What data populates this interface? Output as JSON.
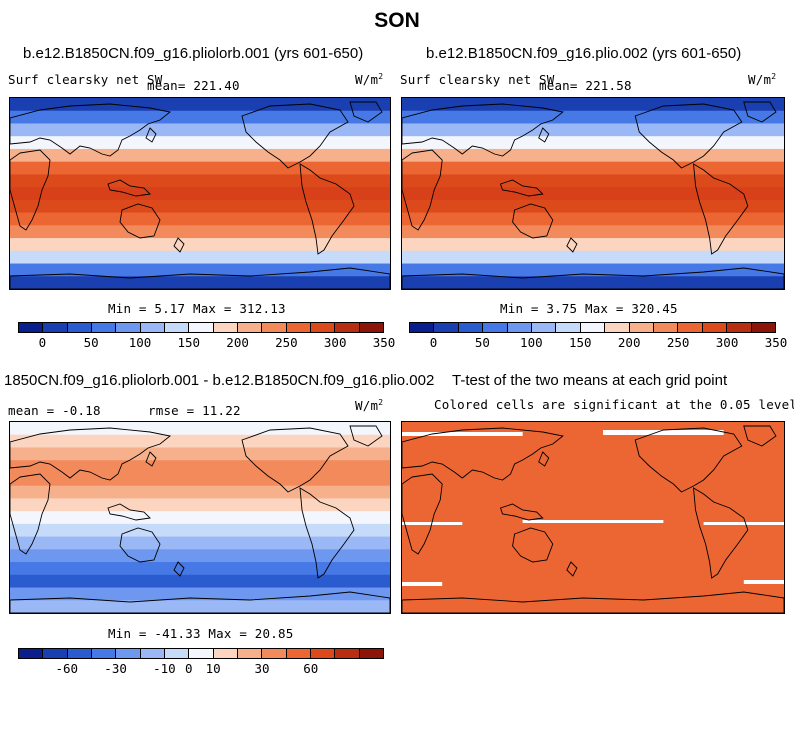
{
  "title": "SON",
  "panels": {
    "p1": {
      "title": "b.e12.B1850CN.f09_g16.pliolorb.001 (yrs 601-650)",
      "variable": "Surf clearsky net SW",
      "mean_label": "mean= 221.40",
      "units": "W/m",
      "units_exp": "2",
      "minmax": "Min =   5.17 Max = 312.13"
    },
    "p2": {
      "title": "b.e12.B1850CN.f09_g16.plio.002 (yrs 601-650)",
      "variable": "Surf clearsky net SW",
      "mean_label": "mean= 221.58",
      "units": "W/m",
      "units_exp": "2",
      "minmax": "Min =   3.75 Max = 320.45"
    },
    "p3": {
      "title": "1850CN.f09_g16.pliolorb.001 - b.e12.B1850CN.f09_g16.plio.002",
      "mean_label": "mean =  -0.18",
      "rmse_label": "rmse =  11.22",
      "units": "W/m",
      "units_exp": "2",
      "minmax": "Min = -41.33 Max =  20.85"
    },
    "p4": {
      "title": "T-test of the two means at each grid point",
      "subtitle": "Colored cells are significant at the 0.05 level"
    }
  },
  "colorbars": {
    "abs": {
      "colors": [
        "#0a1e8c",
        "#1a3fb0",
        "#2a5cd0",
        "#4678e6",
        "#6e98f0",
        "#9ab8f6",
        "#c6dafa",
        "#f3f6fc",
        "#fbd5bf",
        "#f7b08c",
        "#f28a5c",
        "#ec6634",
        "#dc4a1c",
        "#b82e12",
        "#8c1408"
      ],
      "ticks": [
        "0",
        "50",
        "100",
        "150",
        "200",
        "250",
        "300",
        "350"
      ]
    },
    "diff": {
      "colors": [
        "#0a1e8c",
        "#1a3fb0",
        "#2a5cd0",
        "#4678e6",
        "#6e98f0",
        "#9ab8f6",
        "#c6dafa",
        "#f3f6fc",
        "#fbd5bf",
        "#f7b08c",
        "#f28a5c",
        "#ec6634",
        "#dc4a1c",
        "#b82e12",
        "#8c1408"
      ],
      "ticks": [
        "-60",
        "-30",
        "-10",
        "0",
        "10",
        "30",
        "60"
      ]
    }
  },
  "maps": {
    "abs_bands": [
      "#1a3fb0",
      "#4678e6",
      "#9ab8f6",
      "#f3f6fc",
      "#f7b08c",
      "#ec6634",
      "#dc4a1c",
      "#d8401a",
      "#dc4a1c",
      "#ec6634",
      "#f28a5c",
      "#fbd5bf",
      "#c6dafa",
      "#4678e6",
      "#1a3fb0"
    ],
    "diff_bands": [
      "#f3f6fc",
      "#fbd5bf",
      "#f7b08c",
      "#f28a5c",
      "#f28a5c",
      "#f7b08c",
      "#fbd5bf",
      "#f3f6fc",
      "#c6dafa",
      "#9ab8f6",
      "#6e98f0",
      "#4678e6",
      "#2a5cd0",
      "#6e98f0",
      "#9ab8f6"
    ],
    "ttest_color": "#ec6634"
  }
}
